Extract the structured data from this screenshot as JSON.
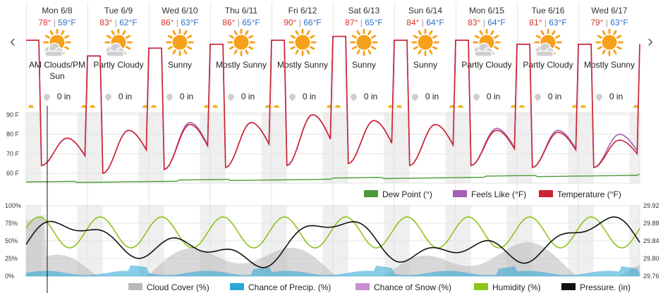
{
  "nav": {
    "prev_label": "‹",
    "next_label": "›"
  },
  "days": [
    {
      "date": "Mon 6/8",
      "high": "78°",
      "low": "59°F",
      "condition": "AM Clouds/PM Sun",
      "icon": "partly-cloudy-icon",
      "precip": "0 in"
    },
    {
      "date": "Tue 6/9",
      "high": "83°",
      "low": "62°F",
      "condition": "Partly Cloudy",
      "icon": "partly-cloudy-icon",
      "precip": "0 in"
    },
    {
      "date": "Wed 6/10",
      "high": "86°",
      "low": "63°F",
      "condition": "Sunny",
      "icon": "sun-icon",
      "precip": "0 in"
    },
    {
      "date": "Thu 6/11",
      "high": "86°",
      "low": "65°F",
      "condition": "Mostly Sunny",
      "icon": "mostly-sunny-icon",
      "precip": "0 in"
    },
    {
      "date": "Fri 6/12",
      "high": "90°",
      "low": "66°F",
      "condition": "Mostly Sunny",
      "icon": "mostly-sunny-icon",
      "precip": "0 in"
    },
    {
      "date": "Sat 6/13",
      "high": "87°",
      "low": "65°F",
      "condition": "Sunny",
      "icon": "sun-icon",
      "precip": "0 in"
    },
    {
      "date": "Sun 6/14",
      "high": "84°",
      "low": "64°F",
      "condition": "Sunny",
      "icon": "sun-icon",
      "precip": "0 in"
    },
    {
      "date": "Mon 6/15",
      "high": "83°",
      "low": "64°F",
      "condition": "Partly Cloudy",
      "icon": "partly-cloudy-icon",
      "precip": "0 in"
    },
    {
      "date": "Tue 6/16",
      "high": "81°",
      "low": "63°F",
      "condition": "Partly Cloudy",
      "icon": "partly-cloudy-icon",
      "precip": "0 in"
    },
    {
      "date": "Wed 6/17",
      "high": "79°",
      "low": "63°F",
      "condition": "Mostly Sunny",
      "icon": "mostly-sunny-icon",
      "precip": "0 in"
    }
  ],
  "colors": {
    "temperature": "#cc2233",
    "feels_like": "#a25fb5",
    "dew_point": "#4c9a3a",
    "cloud_cover": "#b8b8b8",
    "precip": "#2aa6d6",
    "snow": "#c78fd0",
    "humidity": "#8cc41a",
    "pressure": "#111111",
    "sun": "#f7a11a",
    "cloud": "#cfcfcf"
  },
  "chart_data": [
    {
      "type": "line",
      "title": "",
      "y_ticks": [
        "90 F",
        "80 F",
        "70 F",
        "60 F"
      ],
      "ylim": [
        55,
        91
      ],
      "x_unit": "hours from Mon 6/8 00:00",
      "series": [
        {
          "name": "Temperature (°F)",
          "daily_high": [
            78,
            82,
            85,
            86,
            90,
            87,
            85,
            82,
            81,
            77
          ],
          "daily_low": [
            64,
            60,
            62,
            63,
            64,
            65,
            64,
            64,
            63,
            63
          ]
        },
        {
          "name": "Feels Like (°F)",
          "daily_high": [
            78,
            82,
            86,
            86,
            90,
            87,
            85,
            83,
            82,
            80
          ],
          "daily_low": [
            64,
            60,
            62,
            63,
            64,
            65,
            64,
            64,
            63,
            63
          ]
        },
        {
          "name": "Dew Point (°)",
          "values_start": 55,
          "values_end": 59
        }
      ],
      "legend_position": "bottom-right"
    },
    {
      "type": "line",
      "title": "",
      "left_ticks": [
        "100%",
        "75%",
        "50%",
        "25%",
        "0%"
      ],
      "right_ticks": [
        "29.92",
        "29.88",
        "29.84",
        "29.80",
        "29.76"
      ],
      "series": [
        {
          "name": "Cloud Cover (%)"
        },
        {
          "name": "Chance of Precip. (%)"
        },
        {
          "name": "Chance of Snow (%)"
        },
        {
          "name": "Humidity (%)"
        },
        {
          "name": "Pressure. (in)"
        }
      ],
      "legend_position": "bottom"
    }
  ]
}
